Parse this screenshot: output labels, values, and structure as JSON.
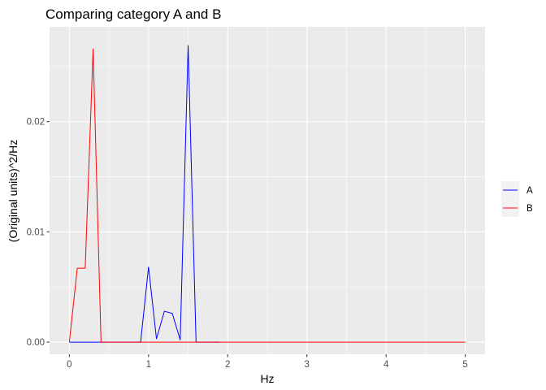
{
  "chart_data": {
    "type": "line",
    "title": "Comparing category A and B",
    "xlabel": "Hz",
    "ylabel": "(Original units)^2/Hz",
    "xlim": [
      -0.25,
      5.25
    ],
    "ylim": [
      -0.0011,
      0.0286
    ],
    "x_ticks": [
      0,
      1,
      2,
      3,
      4,
      5
    ],
    "x_tick_labels": [
      "0",
      "1",
      "2",
      "3",
      "4",
      "5"
    ],
    "y_ticks": [
      0.0,
      0.01,
      0.02
    ],
    "y_tick_labels": [
      "0.00",
      "0.01",
      "0.02"
    ],
    "x_minor_ticks": [
      0.5,
      1.5,
      2.5,
      3.5,
      4.5
    ],
    "y_minor_ticks": [
      0.005,
      0.015,
      0.025
    ],
    "grid": true,
    "legend_position": "right",
    "series": [
      {
        "name": "A",
        "color": "#0000ff",
        "x": [
          0,
          0.1,
          0.2,
          0.3,
          0.4,
          0.5,
          0.6,
          0.7,
          0.8,
          0.9,
          1.0,
          1.1,
          1.2,
          1.3,
          1.4,
          1.5,
          1.6,
          1.7,
          1.8,
          1.9
        ],
        "y": [
          0,
          0,
          0,
          0,
          0,
          0,
          0,
          0,
          0,
          0,
          0.0068,
          0.0003,
          0.0028,
          0.0026,
          0.0002,
          0.0269,
          0,
          0,
          0,
          0
        ]
      },
      {
        "name": "B",
        "color": "#ff0000",
        "x": [
          0,
          0.1,
          0.2,
          0.3,
          0.4,
          0.5,
          1.0,
          1.5,
          2.0,
          2.5,
          3.0,
          3.5,
          4.0,
          4.5,
          5.0
        ],
        "y": [
          0,
          0.0067,
          0.0067,
          0.0266,
          0,
          0,
          0,
          0,
          0,
          0,
          0,
          0,
          0,
          0,
          0
        ]
      }
    ]
  }
}
